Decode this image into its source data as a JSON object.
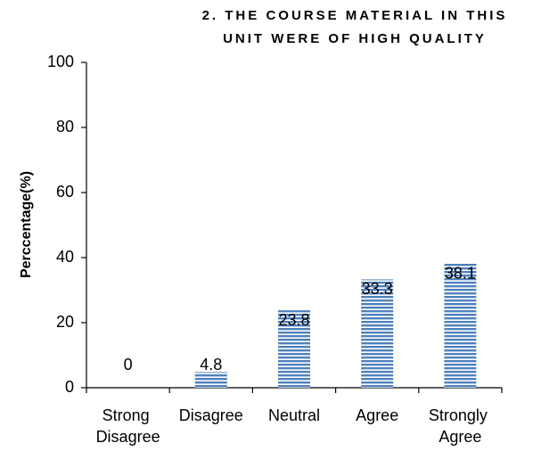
{
  "chart_data": {
    "type": "bar",
    "title": [
      "2. THE COURSE MATERIAL IN THIS",
      "UNIT WERE OF HIGH QUALITY"
    ],
    "y_label": "Perccentage(%)",
    "categories": [
      "Strong Disagree",
      "Disagree",
      "Neutral",
      "Agree",
      "Strongly Agree"
    ],
    "values": [
      0,
      4.8,
      23.8,
      33.3,
      38.1
    ],
    "color": "#4f81bd",
    "ylim": [
      0,
      100
    ],
    "yticks": [
      0,
      20,
      40,
      60,
      80,
      100
    ],
    "grid": false
  }
}
